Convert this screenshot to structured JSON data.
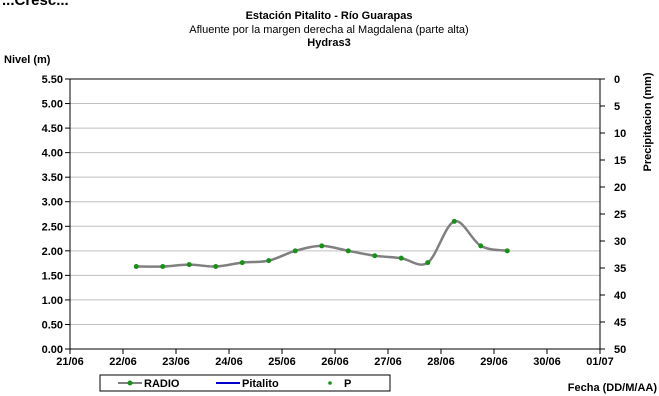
{
  "chart_data": {
    "type": "line",
    "cropped_header_text": "...Cresc...",
    "title": "Estación Pitalito  - Río Guarapas",
    "subtitle": "Afluente por la margen derecha al Magdalena (parte alta)",
    "subtitle2": "Hydras3",
    "ylabel": "Nivel (m)",
    "y2label": "Precipitacion (mm)",
    "xlabel": "Fecha (DD/M/AA)",
    "ylim": [
      0,
      5.5
    ],
    "y2lim": [
      0,
      50
    ],
    "y2_inverted": true,
    "y_ticks": [
      "0.00",
      "0.50",
      "1.00",
      "1.50",
      "2.00",
      "2.50",
      "3.00",
      "3.50",
      "4.00",
      "4.50",
      "5.00",
      "5.50"
    ],
    "y2_ticks": [
      "0",
      "5",
      "10",
      "15",
      "20",
      "25",
      "30",
      "35",
      "40",
      "45",
      "50"
    ],
    "x_ticks": [
      "21/06",
      "22/06",
      "23/06",
      "24/06",
      "25/06",
      "26/06",
      "27/06",
      "28/06",
      "29/06",
      "30/06",
      "01/07"
    ],
    "xlim": [
      0,
      10
    ],
    "grid": "horizontal",
    "series": [
      {
        "name": "RADIO",
        "color": "#808080",
        "marker_color": "#1a8f1a",
        "x": [
          1.25,
          1.75,
          2.25,
          2.75,
          3.25,
          3.75,
          4.25,
          4.75,
          5.25,
          5.75,
          6.25,
          6.75,
          7.25,
          7.75,
          8.25
        ],
        "values": [
          1.68,
          1.68,
          1.72,
          1.68,
          1.76,
          1.8,
          2.0,
          2.1,
          2.0,
          1.9,
          1.85,
          1.76,
          2.6,
          2.1,
          2.0
        ]
      },
      {
        "name": "Pitalito",
        "color": "#0000cc",
        "x": [],
        "values": []
      },
      {
        "name": "P",
        "color": "#1a8f1a",
        "x": [],
        "values": []
      }
    ],
    "legend_position": "bottom-left"
  }
}
